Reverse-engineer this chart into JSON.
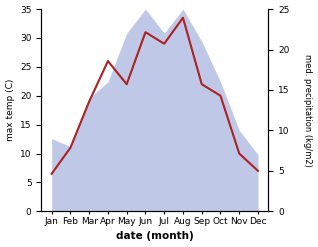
{
  "months": [
    "Jan",
    "Feb",
    "Mar",
    "Apr",
    "May",
    "Jun",
    "Jul",
    "Aug",
    "Sep",
    "Oct",
    "Nov",
    "Dec"
  ],
  "temperature": [
    6.5,
    11.0,
    19.0,
    26.0,
    22.0,
    31.0,
    29.0,
    33.5,
    22.0,
    20.0,
    10.0,
    7.0
  ],
  "precipitation": [
    9,
    8,
    14,
    16,
    22,
    25,
    22,
    25,
    21,
    16,
    10,
    7
  ],
  "temp_color": "#aa2222",
  "precip_fill_color": "#c0c8e8",
  "xlabel": "date (month)",
  "ylabel_left": "max temp (C)",
  "ylabel_right": "med. precipitation (kg/m2)",
  "ylim_left": [
    0,
    35
  ],
  "ylim_right": [
    0,
    25
  ],
  "yticks_left": [
    0,
    5,
    10,
    15,
    20,
    25,
    30,
    35
  ],
  "yticks_right": [
    0,
    5,
    10,
    15,
    20,
    25
  ],
  "fig_width": 3.18,
  "fig_height": 2.47,
  "dpi": 100
}
